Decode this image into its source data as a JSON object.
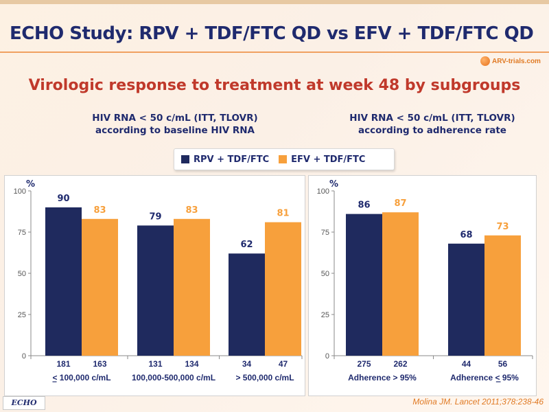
{
  "slide": {
    "title": "ECHO Study: RPV + TDF/FTC QD vs EFV + TDF/FTC QD",
    "subtitle": "Virologic response to treatment at week 48 by subgroups",
    "logo_text": "ARV-trials.com",
    "badge": "ECHO",
    "citation": "Molina JM. Lancet 2011;378:238-46"
  },
  "legend": [
    {
      "label": "RPV + TDF/FTC",
      "color": "#1f2a5e"
    },
    {
      "label": "EFV + TDF/FTC",
      "color": "#f7a03c"
    }
  ],
  "colors": {
    "rpv": "#1f2a5e",
    "efv": "#f7a03c",
    "axis": "#8a8a8a",
    "text": "#1f2a6e"
  },
  "chart_data": [
    {
      "type": "bar",
      "title_line1": "HIV RNA < 50 c/mL (ITT, TLOVR)",
      "title_line2": "according to baseline HIV RNA",
      "ylabel": "%",
      "ylim": [
        0,
        100
      ],
      "yticks": [
        0,
        25,
        50,
        75,
        100
      ],
      "categories": [
        "< 100,000 c/mL",
        "100,000-500,000 c/mL",
        "> 500,000 c/mL"
      ],
      "underline_first_char": [
        true,
        false,
        false
      ],
      "series": [
        {
          "name": "RPV + TDF/FTC",
          "values": [
            90,
            79,
            62
          ],
          "n": [
            "181",
            "131",
            "34"
          ]
        },
        {
          "name": "EFV + TDF/FTC",
          "values": [
            83,
            83,
            81
          ],
          "n": [
            "163",
            "134",
            "47"
          ]
        }
      ],
      "legend": "top-center",
      "grid": false
    },
    {
      "type": "bar",
      "title_line1": "HIV RNA < 50 c/mL (ITT, TLOVR)",
      "title_line2": "according to adherence rate",
      "ylabel": "%",
      "ylim": [
        0,
        100
      ],
      "yticks": [
        0,
        25,
        50,
        75,
        100
      ],
      "categories": [
        "Adherence > 95%",
        "Adherence < 95%"
      ],
      "underline_first_char": [
        false,
        true
      ],
      "series": [
        {
          "name": "RPV + TDF/FTC",
          "values": [
            86,
            68
          ],
          "n": [
            "275",
            "44"
          ]
        },
        {
          "name": "EFV + TDF/FTC",
          "values": [
            87,
            73
          ],
          "n": [
            "262",
            "56"
          ]
        }
      ],
      "legend": "top-center",
      "grid": false
    }
  ]
}
